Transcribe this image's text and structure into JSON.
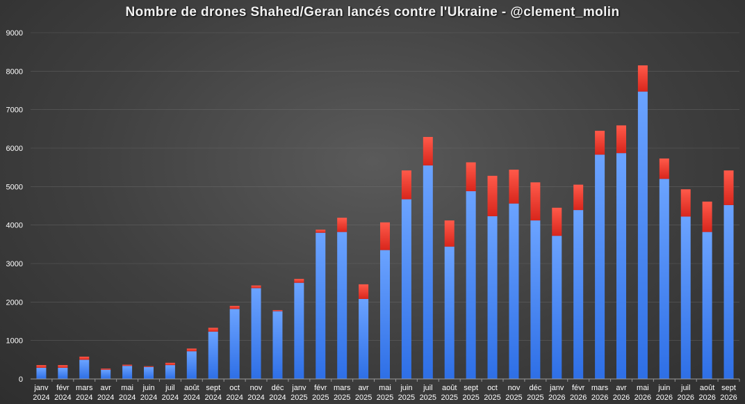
{
  "chart_data": {
    "type": "bar",
    "stacked": true,
    "title": "Nombre de drones Shahed/Geran lancés contre l'Ukraine - @clement_molin",
    "xlabel": "",
    "ylabel": "",
    "ylim": [
      0,
      9000
    ],
    "yticks": [
      0,
      1000,
      2000,
      3000,
      4000,
      5000,
      6000,
      7000,
      8000,
      9000
    ],
    "grid": true,
    "legend": "none",
    "categories": [
      {
        "month": "janv",
        "year": "2024"
      },
      {
        "month": "févr",
        "year": "2024"
      },
      {
        "month": "mars",
        "year": "2024"
      },
      {
        "month": "avr",
        "year": "2024"
      },
      {
        "month": "mai",
        "year": "2024"
      },
      {
        "month": "juin",
        "year": "2024"
      },
      {
        "month": "juil",
        "year": "2024"
      },
      {
        "month": "août",
        "year": "2024"
      },
      {
        "month": "sept",
        "year": "2024"
      },
      {
        "month": "oct",
        "year": "2024"
      },
      {
        "month": "nov",
        "year": "2024"
      },
      {
        "month": "déc",
        "year": "2024"
      },
      {
        "month": "janv",
        "year": "2025"
      },
      {
        "month": "févr",
        "year": "2025"
      },
      {
        "month": "mars",
        "year": "2025"
      },
      {
        "month": "avr",
        "year": "2025"
      },
      {
        "month": "mai",
        "year": "2025"
      },
      {
        "month": "juin",
        "year": "2025"
      },
      {
        "month": "juil",
        "year": "2025"
      },
      {
        "month": "août",
        "year": "2025"
      },
      {
        "month": "sept",
        "year": "2025"
      },
      {
        "month": "oct",
        "year": "2025"
      },
      {
        "month": "nov",
        "year": "2025"
      },
      {
        "month": "déc",
        "year": "2025"
      },
      {
        "month": "janv",
        "year": "2026"
      },
      {
        "month": "févr",
        "year": "2026"
      },
      {
        "month": "mars",
        "year": "2026"
      },
      {
        "month": "avr",
        "year": "2026"
      },
      {
        "month": "mai",
        "year": "2026"
      },
      {
        "month": "juin",
        "year": "2026"
      },
      {
        "month": "juil",
        "year": "2026"
      },
      {
        "month": "août",
        "year": "2026"
      },
      {
        "month": "sept",
        "year": "2026"
      }
    ],
    "series": [
      {
        "color": "#3f7ef0",
        "values": [
          290,
          290,
          500,
          240,
          340,
          310,
          360,
          720,
          1230,
          1820,
          2360,
          1760,
          2500,
          3800,
          3820,
          2080,
          3350,
          4670,
          5550,
          3440,
          4880,
          4230,
          4560,
          4120,
          3720,
          4390,
          5830,
          5870,
          7470,
          5200,
          4220,
          3820,
          4520
        ]
      },
      {
        "color": "#e8372b",
        "values": [
          70,
          70,
          80,
          30,
          30,
          20,
          60,
          70,
          100,
          80,
          70,
          30,
          100,
          80,
          370,
          380,
          720,
          750,
          740,
          680,
          750,
          1050,
          880,
          990,
          730,
          660,
          620,
          720,
          680,
          530,
          710,
          790,
          900
        ]
      }
    ]
  }
}
